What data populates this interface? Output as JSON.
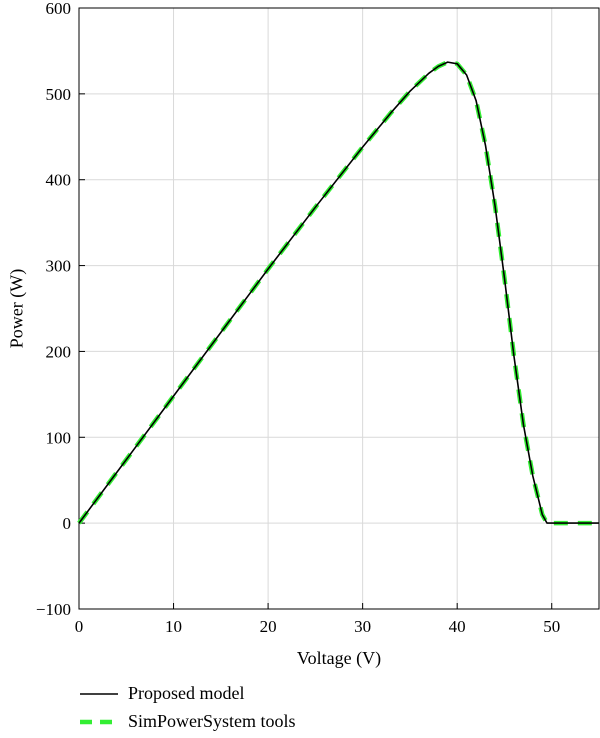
{
  "chart_data": {
    "type": "line",
    "xlabel": "Voltage (V)",
    "ylabel": "Power (W)",
    "xlim": [
      0,
      55
    ],
    "ylim": [
      -100,
      600
    ],
    "xticks": [
      0,
      10,
      20,
      30,
      40,
      50
    ],
    "yticks": [
      -100,
      0,
      100,
      200,
      300,
      400,
      500,
      600
    ],
    "grid": true,
    "legend_position": "bottom",
    "series": [
      {
        "name": "Proposed model",
        "color": "#000000",
        "style": "solid",
        "x": [
          0,
          5,
          10,
          15,
          20,
          25,
          30,
          33,
          35,
          37,
          38,
          39,
          40,
          41,
          42,
          43,
          44,
          45,
          46,
          47,
          48,
          49,
          49.5,
          50,
          52,
          55
        ],
        "y": [
          0,
          74,
          148,
          222,
          296,
          368,
          438,
          478,
          503,
          524,
          532,
          537,
          535,
          522,
          492,
          440,
          370,
          285,
          195,
          115,
          55,
          10,
          0,
          0,
          0,
          0
        ]
      },
      {
        "name": "SimPowerSystem tools",
        "color": "#33ee33",
        "style": "dashed",
        "x": [
          0,
          5,
          10,
          15,
          20,
          25,
          30,
          33,
          35,
          37,
          38,
          39,
          40,
          41,
          42,
          43,
          44,
          45,
          46,
          47,
          48,
          49,
          49.5,
          50,
          52,
          55
        ],
        "y": [
          0,
          74,
          148,
          222,
          296,
          368,
          438,
          478,
          503,
          524,
          532,
          537,
          535,
          522,
          492,
          440,
          370,
          285,
          195,
          115,
          55,
          10,
          0,
          0,
          0,
          0
        ]
      }
    ]
  }
}
